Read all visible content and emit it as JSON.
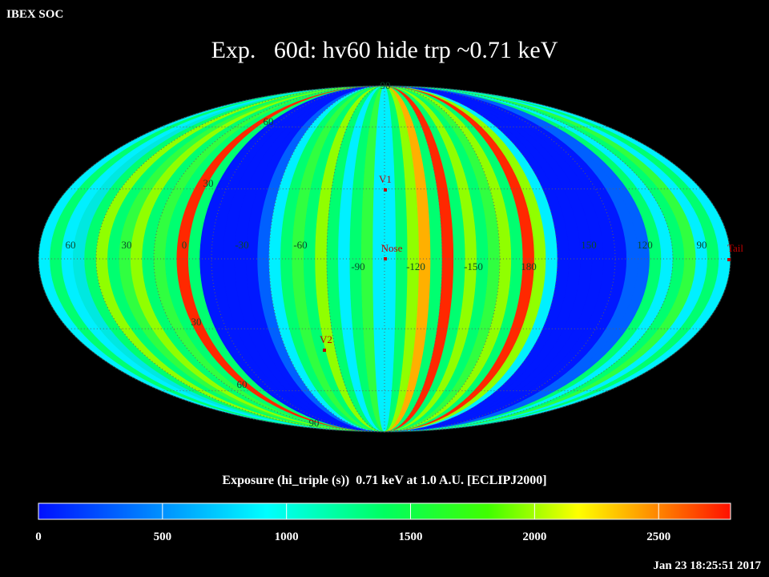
{
  "header": {
    "title": "IBEX SOC",
    "timestamp": "Jan 23 18:25:51 2017"
  },
  "map": {
    "title": "Exp.   60d: hv60 hide trp ~0.71 keV",
    "longitude_labels": [
      "60",
      "30",
      "0",
      "-30",
      "-60",
      "-90",
      "-120",
      "-150",
      "180",
      "150",
      "120",
      "90"
    ],
    "latitude_labels": [
      "90",
      "60",
      "30",
      "30",
      "60",
      "90"
    ],
    "markers": [
      {
        "label": "V1"
      },
      {
        "label": "Nose"
      },
      {
        "label": "V2"
      },
      {
        "label": "Tail"
      }
    ]
  },
  "colorbar": {
    "label": "Exposure (hi_triple (s))  0.71 keV at 1.0 A.U. [ECLIPJ2000]",
    "lim": [
      0,
      2790
    ],
    "ticks": [
      0,
      500,
      1000,
      1500,
      2000,
      2500
    ]
  }
}
